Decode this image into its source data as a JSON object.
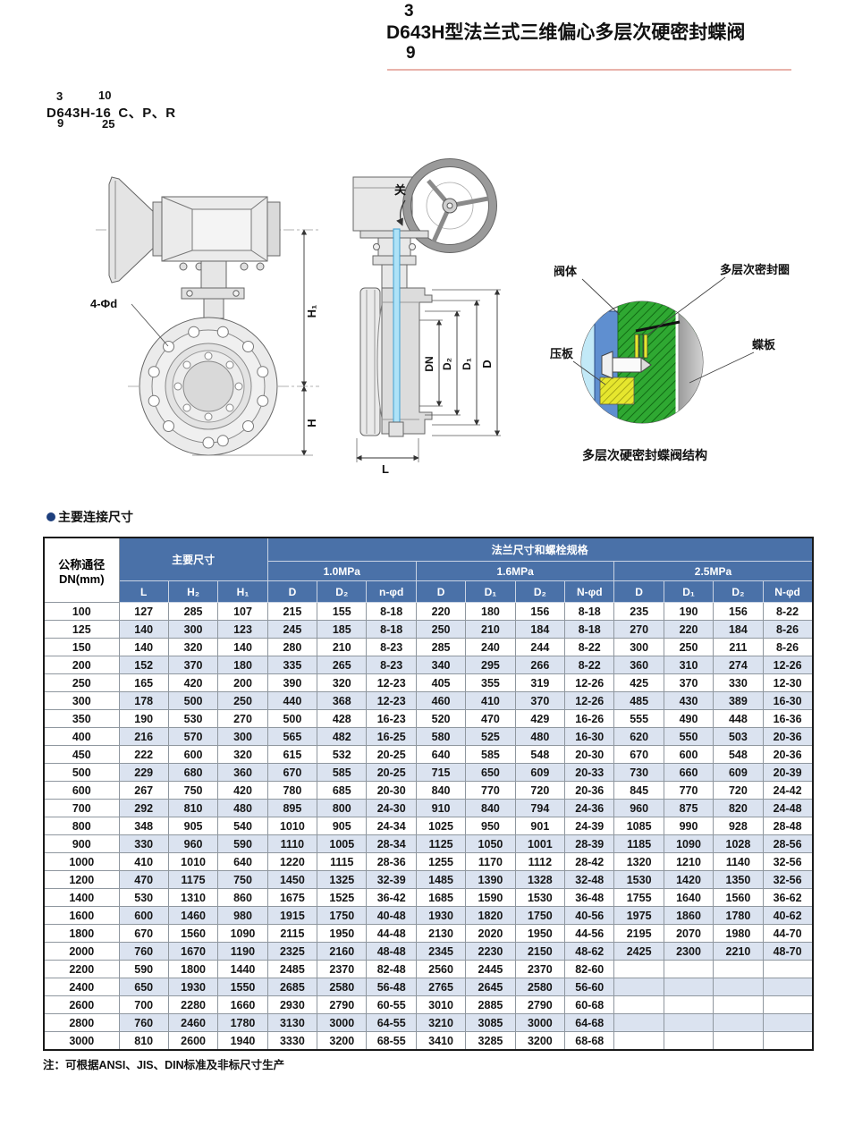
{
  "title": {
    "sup": "3",
    "main": "D643H型法兰式三维偏心多层次硬密封蝶阀",
    "sub": "9"
  },
  "model": {
    "top_left": "3",
    "bottom_left": "9",
    "top_right": "10",
    "bottom_right": "25",
    "main": "D643H-16",
    "suffix": "C、P、R"
  },
  "drawings": {
    "front": {
      "bolt_hole_label": "4-Φd",
      "h1": "H₁",
      "h": "H"
    },
    "section": {
      "close": "关",
      "dn": "DN",
      "d2": "D₂",
      "d1": "D₁",
      "d": "D",
      "l": "L"
    },
    "detail": {
      "valve_body": "阀体",
      "seal_ring": "多层次密封圈",
      "pressure_plate": "压板",
      "disc": "蝶板",
      "caption": "多层次硬密封蝶阀结构"
    }
  },
  "section_title": "主要连接尺寸",
  "table": {
    "header_dn_line1": "公称通径",
    "header_dn_line2": "DN(mm)",
    "header_main_dims": "主要尺寸",
    "header_flange": "法兰尺寸和螺栓规格",
    "pressure_groups": [
      "1.0MPa",
      "1.6MPa",
      "2.5MPa"
    ],
    "sub_headers": [
      "L",
      "H₂",
      "H₁",
      "D",
      "D₂",
      "n-φd",
      "D",
      "D₁",
      "D₂",
      "N-φd",
      "D",
      "D₁",
      "D₂",
      "N-φd"
    ],
    "rows": [
      [
        "100",
        "127",
        "285",
        "107",
        "215",
        "155",
        "8-18",
        "220",
        "180",
        "156",
        "8-18",
        "235",
        "190",
        "156",
        "8-22"
      ],
      [
        "125",
        "140",
        "300",
        "123",
        "245",
        "185",
        "8-18",
        "250",
        "210",
        "184",
        "8-18",
        "270",
        "220",
        "184",
        "8-26"
      ],
      [
        "150",
        "140",
        "320",
        "140",
        "280",
        "210",
        "8-23",
        "285",
        "240",
        "244",
        "8-22",
        "300",
        "250",
        "211",
        "8-26"
      ],
      [
        "200",
        "152",
        "370",
        "180",
        "335",
        "265",
        "8-23",
        "340",
        "295",
        "266",
        "8-22",
        "360",
        "310",
        "274",
        "12-26"
      ],
      [
        "250",
        "165",
        "420",
        "200",
        "390",
        "320",
        "12-23",
        "405",
        "355",
        "319",
        "12-26",
        "425",
        "370",
        "330",
        "12-30"
      ],
      [
        "300",
        "178",
        "500",
        "250",
        "440",
        "368",
        "12-23",
        "460",
        "410",
        "370",
        "12-26",
        "485",
        "430",
        "389",
        "16-30"
      ],
      [
        "350",
        "190",
        "530",
        "270",
        "500",
        "428",
        "16-23",
        "520",
        "470",
        "429",
        "16-26",
        "555",
        "490",
        "448",
        "16-36"
      ],
      [
        "400",
        "216",
        "570",
        "300",
        "565",
        "482",
        "16-25",
        "580",
        "525",
        "480",
        "16-30",
        "620",
        "550",
        "503",
        "20-36"
      ],
      [
        "450",
        "222",
        "600",
        "320",
        "615",
        "532",
        "20-25",
        "640",
        "585",
        "548",
        "20-30",
        "670",
        "600",
        "548",
        "20-36"
      ],
      [
        "500",
        "229",
        "680",
        "360",
        "670",
        "585",
        "20-25",
        "715",
        "650",
        "609",
        "20-33",
        "730",
        "660",
        "609",
        "20-39"
      ],
      [
        "600",
        "267",
        "750",
        "420",
        "780",
        "685",
        "20-30",
        "840",
        "770",
        "720",
        "20-36",
        "845",
        "770",
        "720",
        "24-42"
      ],
      [
        "700",
        "292",
        "810",
        "480",
        "895",
        "800",
        "24-30",
        "910",
        "840",
        "794",
        "24-36",
        "960",
        "875",
        "820",
        "24-48"
      ],
      [
        "800",
        "348",
        "905",
        "540",
        "1010",
        "905",
        "24-34",
        "1025",
        "950",
        "901",
        "24-39",
        "1085",
        "990",
        "928",
        "28-48"
      ],
      [
        "900",
        "330",
        "960",
        "590",
        "1110",
        "1005",
        "28-34",
        "1125",
        "1050",
        "1001",
        "28-39",
        "1185",
        "1090",
        "1028",
        "28-56"
      ],
      [
        "1000",
        "410",
        "1010",
        "640",
        "1220",
        "1115",
        "28-36",
        "1255",
        "1170",
        "1112",
        "28-42",
        "1320",
        "1210",
        "1140",
        "32-56"
      ],
      [
        "1200",
        "470",
        "1175",
        "750",
        "1450",
        "1325",
        "32-39",
        "1485",
        "1390",
        "1328",
        "32-48",
        "1530",
        "1420",
        "1350",
        "32-56"
      ],
      [
        "1400",
        "530",
        "1310",
        "860",
        "1675",
        "1525",
        "36-42",
        "1685",
        "1590",
        "1530",
        "36-48",
        "1755",
        "1640",
        "1560",
        "36-62"
      ],
      [
        "1600",
        "600",
        "1460",
        "980",
        "1915",
        "1750",
        "40-48",
        "1930",
        "1820",
        "1750",
        "40-56",
        "1975",
        "1860",
        "1780",
        "40-62"
      ],
      [
        "1800",
        "670",
        "1560",
        "1090",
        "2115",
        "1950",
        "44-48",
        "2130",
        "2020",
        "1950",
        "44-56",
        "2195",
        "2070",
        "1980",
        "44-70"
      ],
      [
        "2000",
        "760",
        "1670",
        "1190",
        "2325",
        "2160",
        "48-48",
        "2345",
        "2230",
        "2150",
        "48-62",
        "2425",
        "2300",
        "2210",
        "48-70"
      ],
      [
        "2200",
        "590",
        "1800",
        "1440",
        "2485",
        "2370",
        "82-48",
        "2560",
        "2445",
        "2370",
        "82-60",
        "",
        "",
        "",
        ""
      ],
      [
        "2400",
        "650",
        "1930",
        "1550",
        "2685",
        "2580",
        "56-48",
        "2765",
        "2645",
        "2580",
        "56-60",
        "",
        "",
        "",
        ""
      ],
      [
        "2600",
        "700",
        "2280",
        "1660",
        "2930",
        "2790",
        "60-55",
        "3010",
        "2885",
        "2790",
        "60-68",
        "",
        "",
        "",
        ""
      ],
      [
        "2800",
        "760",
        "2460",
        "1780",
        "3130",
        "3000",
        "64-55",
        "3210",
        "3085",
        "3000",
        "64-68",
        "",
        "",
        "",
        ""
      ],
      [
        "3000",
        "810",
        "2600",
        "1940",
        "3330",
        "3200",
        "68-55",
        "3410",
        "3285",
        "3200",
        "68-68",
        "",
        "",
        "",
        ""
      ]
    ],
    "note": "注：可根据ANSI、JIS、DIN标准及非标尺寸生产"
  }
}
